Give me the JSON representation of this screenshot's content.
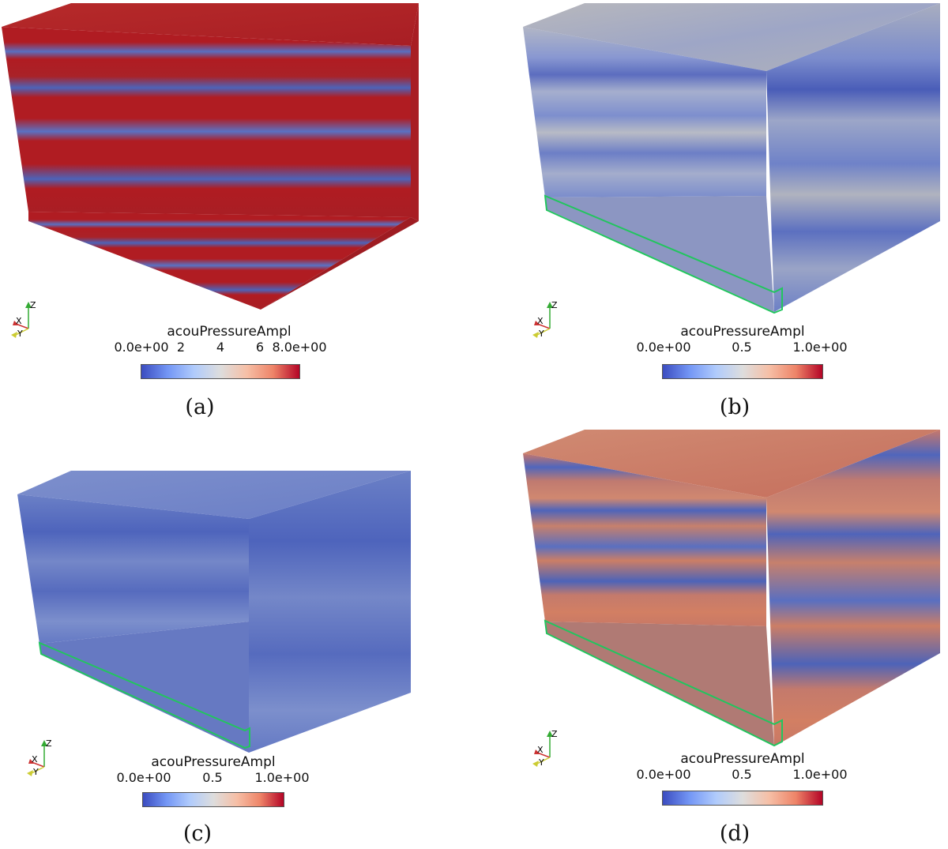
{
  "panels": [
    {
      "id": "a",
      "caption": "(a)",
      "colorbar": {
        "title": "acouPressureAmpl",
        "ticks": [
          "0.0e+00",
          "2",
          "4",
          "6",
          "8.0e+00"
        ]
      },
      "axes": {
        "z": "Z",
        "x": "X",
        "y": "Y"
      }
    },
    {
      "id": "b",
      "caption": "(b)",
      "colorbar": {
        "title": "acouPressureAmpl",
        "ticks": [
          "0.0e+00",
          "0.5",
          "1.0e+00"
        ]
      },
      "axes": {
        "z": "Z",
        "x": "X",
        "y": "Y"
      }
    },
    {
      "id": "c",
      "caption": "(c)",
      "colorbar": {
        "title": "acouPressureAmpl",
        "ticks": [
          "0.0e+00",
          "0.5",
          "1.0e+00"
        ]
      },
      "axes": {
        "z": "Z",
        "x": "X",
        "y": "Y"
      }
    },
    {
      "id": "d",
      "caption": "(d)",
      "colorbar": {
        "title": "acouPressureAmpl",
        "ticks": [
          "0.0e+00",
          "0.5",
          "1.0e+00"
        ]
      },
      "axes": {
        "z": "Z",
        "x": "X",
        "y": "Y"
      }
    }
  ],
  "colors": {
    "low": "#3b4cc0",
    "mid": "#dddddd",
    "high": "#b40426",
    "outline": "#22c55e"
  }
}
